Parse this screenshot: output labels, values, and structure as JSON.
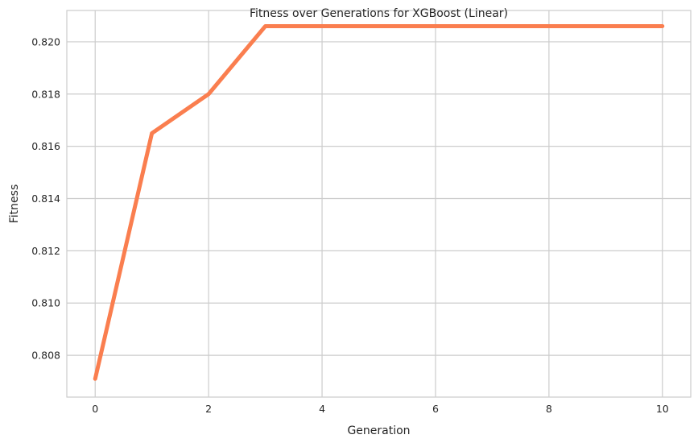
{
  "chart_data": {
    "type": "line",
    "title": "Fitness over Generations for XGBoost (Linear)",
    "xlabel": "Generation",
    "ylabel": "Fitness",
    "xlim": [
      -0.5,
      10.5
    ],
    "ylim": [
      0.8064,
      0.8212
    ],
    "xticks": [
      0,
      2,
      4,
      6,
      8,
      10
    ],
    "xtick_labels": [
      "0",
      "2",
      "4",
      "6",
      "8",
      "10"
    ],
    "yticks": [
      0.808,
      0.81,
      0.812,
      0.814,
      0.816,
      0.818,
      0.82
    ],
    "ytick_labels": [
      "0.808",
      "0.810",
      "0.812",
      "0.814",
      "0.816",
      "0.818",
      "0.820"
    ],
    "grid": true,
    "series": [
      {
        "color": "#fa7e4f",
        "x": [
          0,
          1,
          2,
          3,
          4,
          5,
          6,
          7,
          8,
          9,
          10
        ],
        "y": [
          0.8071,
          0.8165,
          0.818,
          0.8206,
          0.8206,
          0.8206,
          0.8206,
          0.8206,
          0.8206,
          0.8206,
          0.8206
        ]
      }
    ]
  }
}
